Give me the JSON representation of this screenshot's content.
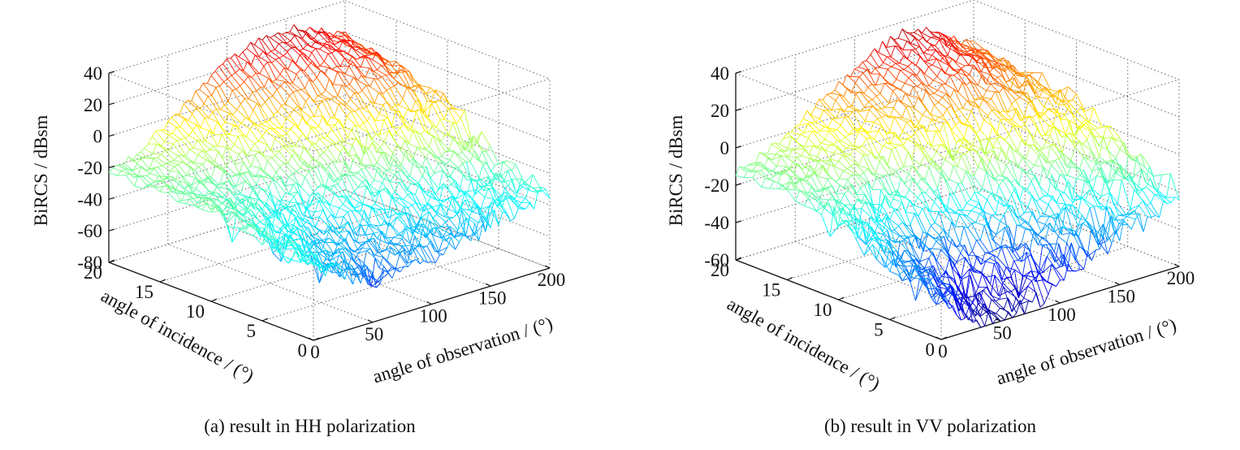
{
  "chart_data": [
    {
      "type": "surface",
      "caption": "(a) result in HH polarization",
      "xlabel": "angle of observation / (°)",
      "ylabel": "angle of incidence / (°)",
      "zlabel": "BiRCS / dBsm",
      "xlim": [
        0,
        200
      ],
      "ylim": [
        0,
        20
      ],
      "zlim": [
        -80,
        40
      ],
      "xticks": [
        "0",
        "50",
        "100",
        "150",
        "200"
      ],
      "yticks": [
        "0",
        "5",
        "10",
        "15",
        "20"
      ],
      "zticks": [
        "40",
        "20",
        "0",
        "-20",
        "-40",
        "-60",
        "-80"
      ],
      "grid": true,
      "colormap": "jet",
      "mesh": {
        "angle_of_observation": [
          0,
          20,
          40,
          60,
          80,
          100,
          120,
          140,
          160,
          180,
          200
        ],
        "angle_of_incidence": [
          0,
          5,
          10,
          15,
          20
        ],
        "birc_dbsm": [
          [
            -34,
            -40,
            -50,
            -56,
            -53,
            -48,
            -46,
            -42,
            -38,
            -34,
            -30
          ],
          [
            -28,
            -34,
            -40,
            -44,
            -43,
            -40,
            -38,
            -36,
            -32,
            -28,
            -22
          ],
          [
            -22,
            -26,
            -30,
            -32,
            -30,
            -25,
            -20,
            -14,
            -8,
            -2,
            4
          ],
          [
            -22,
            -22,
            -22,
            -18,
            -12,
            -4,
            4,
            12,
            18,
            22,
            12
          ],
          [
            -23,
            -18,
            -8,
            2,
            14,
            24,
            30,
            34,
            32,
            25,
            18
          ]
        ]
      }
    },
    {
      "type": "surface",
      "caption": "(b) result in VV polarization",
      "xlabel": "angle of observation / (°)",
      "ylabel": "angle of incidence / (°)",
      "zlabel": "BiRCS / dBsm",
      "xlim": [
        0,
        200
      ],
      "ylim": [
        0,
        20
      ],
      "zlim": [
        -60,
        40
      ],
      "xticks": [
        "0",
        "50",
        "100",
        "150",
        "200"
      ],
      "yticks": [
        "0",
        "5",
        "10",
        "15",
        "20"
      ],
      "zticks": [
        "40",
        "20",
        "0",
        "-20",
        "-40",
        "-60"
      ],
      "grid": true,
      "colormap": "jet",
      "mesh": {
        "angle_of_observation": [
          0,
          20,
          40,
          60,
          80,
          100,
          120,
          140,
          160,
          180,
          200
        ],
        "angle_of_incidence": [
          0,
          5,
          10,
          15,
          20
        ],
        "birc_dbsm": [
          [
            -40,
            -48,
            -58,
            -60,
            -54,
            -46,
            -40,
            -36,
            -32,
            -26,
            -20
          ],
          [
            -30,
            -36,
            -42,
            -44,
            -40,
            -34,
            -28,
            -22,
            -16,
            -10,
            -6
          ],
          [
            -18,
            -20,
            -22,
            -20,
            -14,
            -8,
            -4,
            0,
            4,
            8,
            10
          ],
          [
            -12,
            -10,
            -6,
            -2,
            4,
            10,
            16,
            20,
            22,
            18,
            12
          ],
          [
            -14,
            -8,
            -2,
            6,
            14,
            22,
            30,
            34,
            32,
            24,
            16
          ]
        ]
      }
    }
  ]
}
